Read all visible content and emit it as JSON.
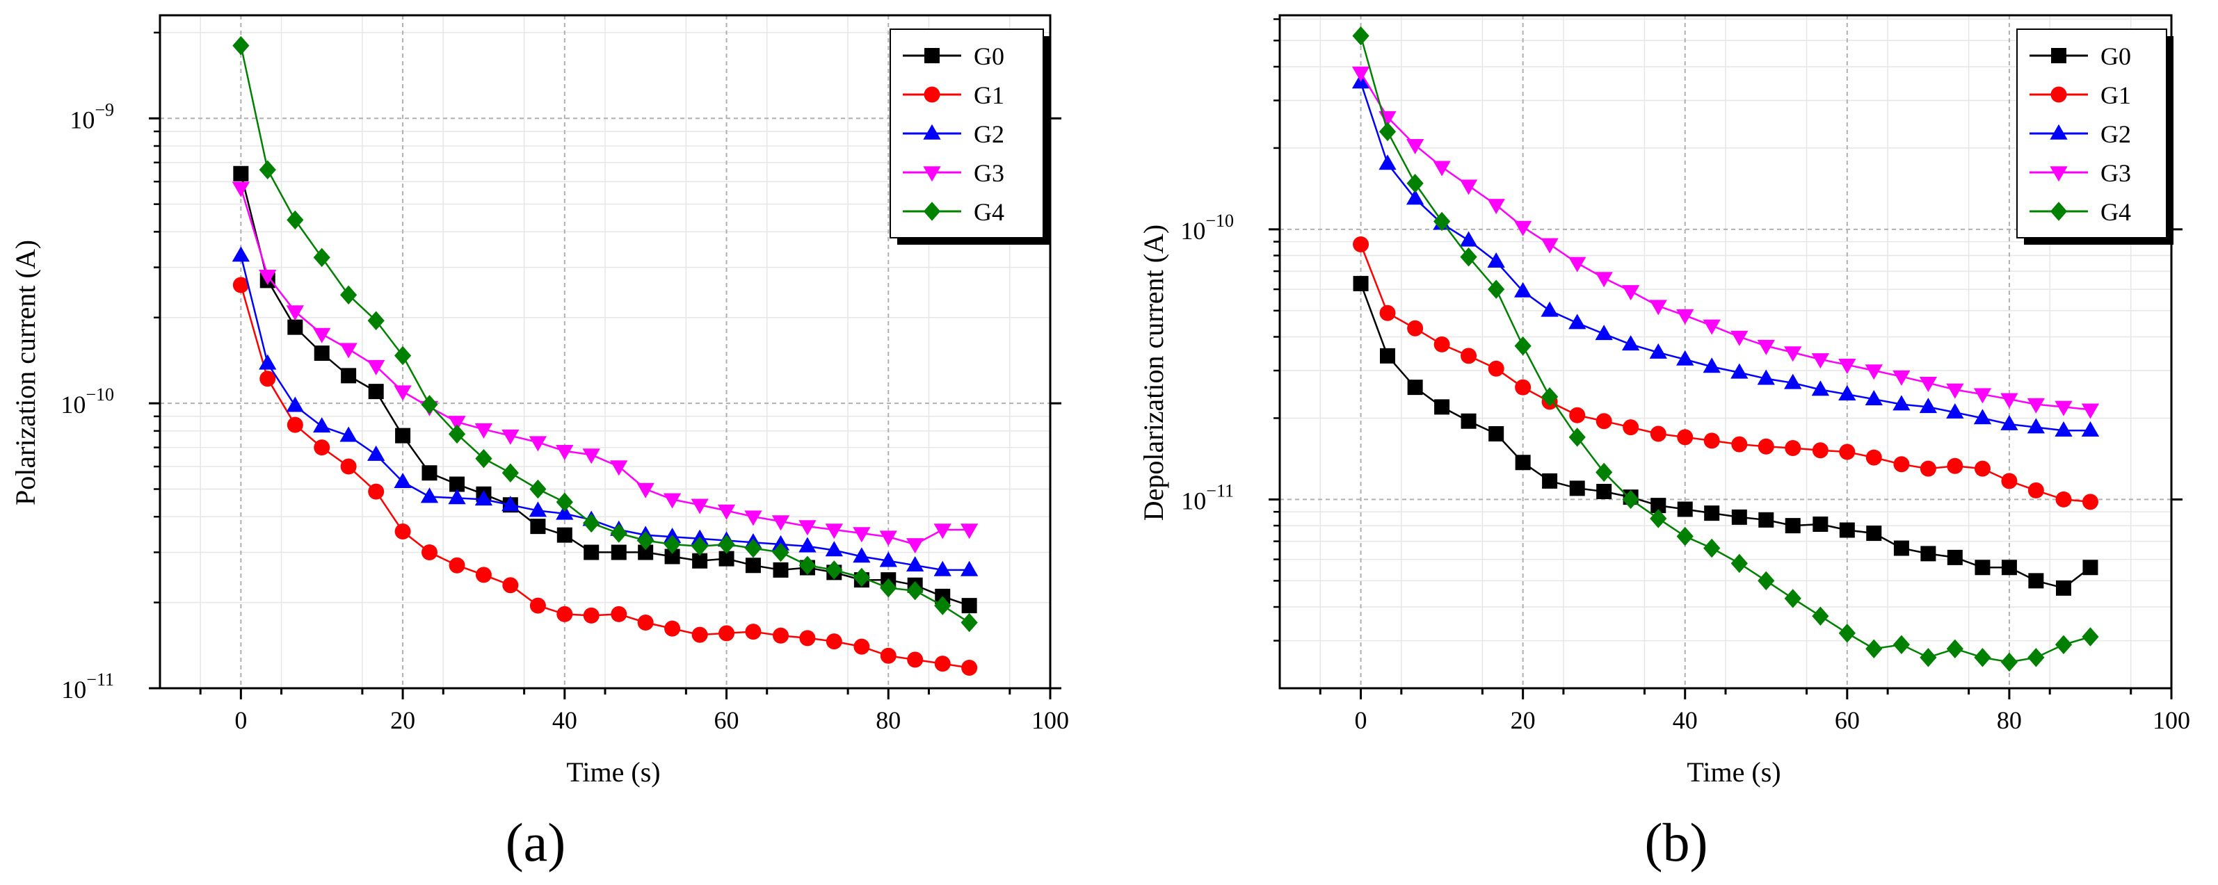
{
  "figure": {
    "panels": [
      "(a)",
      "(b)"
    ]
  },
  "chart_data": [
    {
      "type": "line",
      "panel_label": "(a)",
      "title": "",
      "xlabel": "Time (s)",
      "ylabel": "Polarization current (A)",
      "xlim": [
        -10,
        100
      ],
      "ylim": [
        1e-11,
        2.3e-09
      ],
      "yscale": "log",
      "grid": true,
      "legend_position": "top-right",
      "xticks": [
        {
          "value": 0,
          "label": "0"
        },
        {
          "value": 20,
          "label": "20"
        },
        {
          "value": 40,
          "label": "40"
        },
        {
          "value": 60,
          "label": "60"
        },
        {
          "value": 80,
          "label": "80"
        },
        {
          "value": 100,
          "label": "100"
        }
      ],
      "yticks": [
        {
          "value": 1e-11,
          "base": "10",
          "exp": "−11"
        },
        {
          "value": 1e-10,
          "base": "10",
          "exp": "−10"
        },
        {
          "value": 1e-09,
          "base": "10",
          "exp": "−9"
        }
      ],
      "x": [
        0,
        3.3,
        6.7,
        10,
        13.3,
        16.7,
        20,
        23.3,
        26.7,
        30,
        33.3,
        36.7,
        40,
        43.3,
        46.7,
        50,
        53.3,
        56.7,
        60,
        63.3,
        66.7,
        70,
        73.3,
        76.7,
        80,
        83.3,
        86.7,
        90
      ],
      "series": [
        {
          "name": "G0",
          "color": "#000000",
          "marker": "square",
          "values": [
            6.4e-10,
            2.7e-10,
            1.85e-10,
            1.5e-10,
            1.25e-10,
            1.1e-10,
            7.7e-11,
            5.7e-11,
            5.2e-11,
            4.8e-11,
            4.4e-11,
            3.7e-11,
            3.45e-11,
            3e-11,
            3e-11,
            3e-11,
            2.9e-11,
            2.8e-11,
            2.85e-11,
            2.7e-11,
            2.6e-11,
            2.65e-11,
            2.55e-11,
            2.4e-11,
            2.4e-11,
            2.3e-11,
            2.1e-11,
            1.95e-11
          ]
        },
        {
          "name": "G1",
          "color": "#ff0000",
          "marker": "circle",
          "values": [
            2.6e-10,
            1.22e-10,
            8.4e-11,
            7e-11,
            6e-11,
            4.9e-11,
            3.55e-11,
            3e-11,
            2.7e-11,
            2.5e-11,
            2.3e-11,
            1.95e-11,
            1.82e-11,
            1.8e-11,
            1.82e-11,
            1.7e-11,
            1.62e-11,
            1.54e-11,
            1.56e-11,
            1.58e-11,
            1.53e-11,
            1.5e-11,
            1.46e-11,
            1.4e-11,
            1.3e-11,
            1.26e-11,
            1.22e-11,
            1.18e-11
          ]
        },
        {
          "name": "G2",
          "color": "#0000ff",
          "marker": "triangle-up",
          "values": [
            3.3e-10,
            1.38e-10,
            9.8e-11,
            8.3e-11,
            7.7e-11,
            6.6e-11,
            5.3e-11,
            4.7e-11,
            4.65e-11,
            4.6e-11,
            4.4e-11,
            4.2e-11,
            4.1e-11,
            3.9e-11,
            3.6e-11,
            3.45e-11,
            3.4e-11,
            3.35e-11,
            3.3e-11,
            3.25e-11,
            3.2e-11,
            3.15e-11,
            3.05e-11,
            2.9e-11,
            2.8e-11,
            2.7e-11,
            2.6e-11,
            2.6e-11
          ]
        },
        {
          "name": "G3",
          "color": "#ff00ff",
          "marker": "triangle-down",
          "values": [
            5.7e-10,
            2.8e-10,
            2.1e-10,
            1.75e-10,
            1.55e-10,
            1.35e-10,
            1.1e-10,
            9.7e-11,
            8.6e-11,
            8.1e-11,
            7.7e-11,
            7.3e-11,
            6.8e-11,
            6.6e-11,
            6e-11,
            5e-11,
            4.6e-11,
            4.4e-11,
            4.2e-11,
            4e-11,
            3.85e-11,
            3.7e-11,
            3.6e-11,
            3.5e-11,
            3.4e-11,
            3.2e-11,
            3.6e-11,
            3.6e-11
          ]
        },
        {
          "name": "G4",
          "color": "#008000",
          "marker": "diamond",
          "values": [
            1.8e-09,
            6.6e-10,
            4.4e-10,
            3.25e-10,
            2.4e-10,
            1.95e-10,
            1.47e-10,
            9.9e-11,
            7.8e-11,
            6.4e-11,
            5.7e-11,
            5e-11,
            4.5e-11,
            3.8e-11,
            3.5e-11,
            3.3e-11,
            3.2e-11,
            3.15e-11,
            3.2e-11,
            3.1e-11,
            3e-11,
            2.7e-11,
            2.6e-11,
            2.45e-11,
            2.25e-11,
            2.2e-11,
            1.95e-11,
            1.7e-11
          ]
        }
      ]
    },
    {
      "type": "line",
      "panel_label": "(b)",
      "title": "",
      "xlabel": "Time (s)",
      "ylabel": "Depolarization current (A)",
      "xlim": [
        -10,
        100
      ],
      "ylim": [
        2e-12,
        6.2e-10
      ],
      "yscale": "log",
      "grid": true,
      "legend_position": "top-right",
      "xticks": [
        {
          "value": 0,
          "label": "0"
        },
        {
          "value": 20,
          "label": "20"
        },
        {
          "value": 40,
          "label": "40"
        },
        {
          "value": 60,
          "label": "60"
        },
        {
          "value": 80,
          "label": "80"
        },
        {
          "value": 100,
          "label": "100"
        }
      ],
      "yticks": [
        {
          "value": 1e-11,
          "base": "10",
          "exp": "−11"
        },
        {
          "value": 1e-10,
          "base": "10",
          "exp": "−10"
        }
      ],
      "x": [
        0,
        3.3,
        6.7,
        10,
        13.3,
        16.7,
        20,
        23.3,
        26.7,
        30,
        33.3,
        36.7,
        40,
        43.3,
        46.7,
        50,
        53.3,
        56.7,
        60,
        63.3,
        66.7,
        70,
        73.3,
        76.7,
        80,
        83.3,
        86.7,
        90
      ],
      "series": [
        {
          "name": "G0",
          "color": "#000000",
          "marker": "square",
          "values": [
            6.3e-11,
            3.4e-11,
            2.6e-11,
            2.2e-11,
            1.95e-11,
            1.75e-11,
            1.37e-11,
            1.17e-11,
            1.1e-11,
            1.07e-11,
            1.02e-11,
            9.5e-12,
            9.2e-12,
            8.9e-12,
            8.6e-12,
            8.4e-12,
            8e-12,
            8.1e-12,
            7.7e-12,
            7.5e-12,
            6.6e-12,
            6.3e-12,
            6.1e-12,
            5.6e-12,
            5.6e-12,
            5e-12,
            4.7e-12,
            5.6e-12
          ]
        },
        {
          "name": "G1",
          "color": "#ff0000",
          "marker": "circle",
          "values": [
            8.8e-11,
            4.9e-11,
            4.3e-11,
            3.75e-11,
            3.4e-11,
            3.05e-11,
            2.6e-11,
            2.3e-11,
            2.05e-11,
            1.95e-11,
            1.85e-11,
            1.75e-11,
            1.7e-11,
            1.65e-11,
            1.6e-11,
            1.57e-11,
            1.55e-11,
            1.52e-11,
            1.5e-11,
            1.43e-11,
            1.35e-11,
            1.3e-11,
            1.33e-11,
            1.3e-11,
            1.17e-11,
            1.08e-11,
            1e-11,
            9.8e-12
          ]
        },
        {
          "name": "G2",
          "color": "#0000ff",
          "marker": "triangle-up",
          "values": [
            3.5e-10,
            1.75e-10,
            1.3e-10,
            1.05e-10,
            9.1e-11,
            7.6e-11,
            5.9e-11,
            5e-11,
            4.5e-11,
            4.1e-11,
            3.75e-11,
            3.5e-11,
            3.3e-11,
            3.1e-11,
            2.95e-11,
            2.8e-11,
            2.7e-11,
            2.55e-11,
            2.45e-11,
            2.35e-11,
            2.25e-11,
            2.2e-11,
            2.1e-11,
            2e-11,
            1.9e-11,
            1.85e-11,
            1.8e-11,
            1.8e-11
          ]
        },
        {
          "name": "G3",
          "color": "#ff00ff",
          "marker": "triangle-down",
          "values": [
            3.8e-10,
            2.6e-10,
            2.05e-10,
            1.7e-10,
            1.45e-10,
            1.23e-10,
            1.02e-10,
            8.8e-11,
            7.5e-11,
            6.6e-11,
            5.9e-11,
            5.2e-11,
            4.8e-11,
            4.4e-11,
            4e-11,
            3.7e-11,
            3.5e-11,
            3.3e-11,
            3.15e-11,
            3e-11,
            2.85e-11,
            2.7e-11,
            2.55e-11,
            2.45e-11,
            2.35e-11,
            2.25e-11,
            2.2e-11,
            2.15e-11
          ]
        },
        {
          "name": "G4",
          "color": "#008000",
          "marker": "diamond",
          "values": [
            5.2e-10,
            2.3e-10,
            1.48e-10,
            1.07e-10,
            7.9e-11,
            6e-11,
            3.7e-11,
            2.4e-11,
            1.7e-11,
            1.26e-11,
            1e-11,
            8.5e-12,
            7.3e-12,
            6.6e-12,
            5.8e-12,
            5e-12,
            4.3e-12,
            3.7e-12,
            3.2e-12,
            2.8e-12,
            2.9e-12,
            2.6e-12,
            2.8e-12,
            2.6e-12,
            2.5e-12,
            2.6e-12,
            2.9e-12,
            3.1e-12
          ]
        }
      ]
    }
  ]
}
